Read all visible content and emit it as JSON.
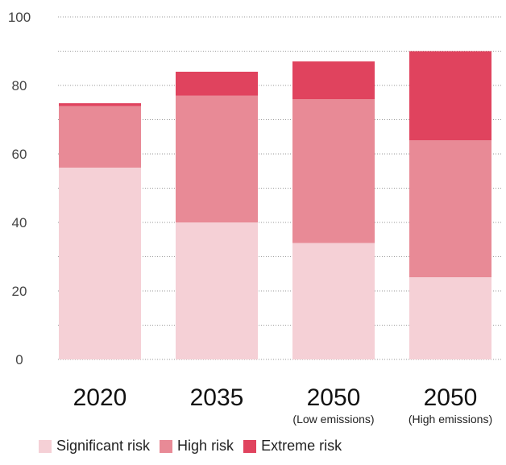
{
  "chart_data": {
    "type": "bar",
    "stacked": true,
    "categories": [
      "2020",
      "2035",
      "2050",
      "2050"
    ],
    "category_subtitles": [
      "",
      "",
      "(Low emissions)",
      "(High emissions)"
    ],
    "series": [
      {
        "name": "Significant risk",
        "color": "#f5d0d6",
        "values": [
          56,
          40,
          34,
          24
        ]
      },
      {
        "name": "High risk",
        "color": "#e88a96",
        "values": [
          18,
          37,
          42,
          40
        ]
      },
      {
        "name": "Extreme risk",
        "color": "#e0435e",
        "values": [
          0.8,
          7,
          11,
          26
        ]
      }
    ],
    "ylim": [
      0,
      100
    ],
    "yticks": [
      0,
      20,
      40,
      60,
      80,
      100
    ],
    "grid": true,
    "legend_position": "bottom-left",
    "title": "",
    "xlabel": "",
    "ylabel": ""
  }
}
